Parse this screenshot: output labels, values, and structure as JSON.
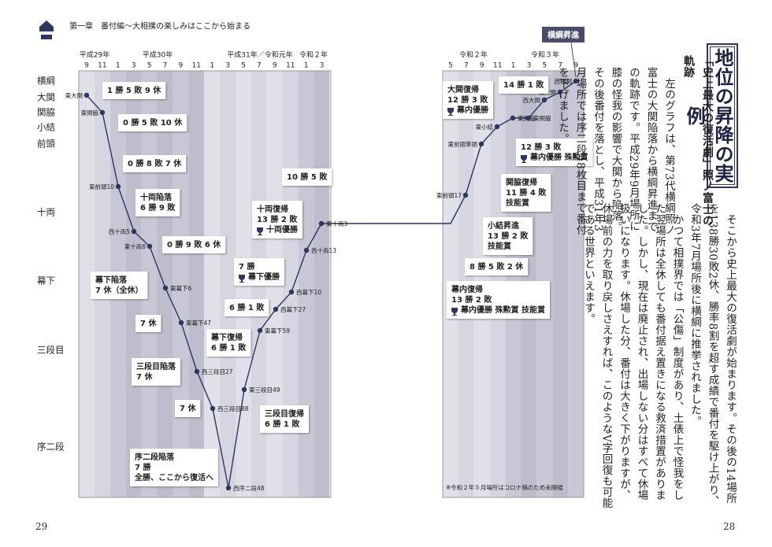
{
  "header": {
    "chapter": "第一章　番付編〜大相撲の楽しみはここから始まる"
  },
  "page_numbers": {
    "left": "29",
    "right": "28"
  },
  "chart": {
    "years_left": [
      "平成29年",
      "平成30年",
      "平成31年／令和元年",
      "令和２年"
    ],
    "months_left": [
      "9",
      "11",
      "1",
      "3",
      "5",
      "7",
      "9",
      "11",
      "1",
      "3",
      "5",
      "7",
      "9",
      "11",
      "1",
      "3"
    ],
    "years_right": [
      "令和２年",
      "令和３年"
    ],
    "months_right": [
      "5",
      "7",
      "9",
      "11",
      "1",
      "3",
      "5",
      "7",
      "9"
    ],
    "ranks": [
      "横綱",
      "大関",
      "関脇",
      "小結",
      "前頭",
      "十両",
      "幕下",
      "三段目",
      "序二段"
    ],
    "points": [
      "東大関",
      "東関脇",
      "東前頭10",
      "西十両5",
      "東十両8",
      "東幕下6",
      "東幕下47",
      "西三段目27",
      "西三段目88",
      "西序二段48",
      "東三段目49",
      "東幕下59",
      "西幕下27",
      "西幕下10",
      "西十両13",
      "東十両3",
      "東前頭17",
      "東前頭筆頭",
      "東小結",
      "東関脇",
      "東関脇",
      "西大関",
      "東大関",
      "西横綱"
    ],
    "boxes": [
      {
        "lines": [
          "1 勝 5 敗 9 休"
        ]
      },
      {
        "lines": [
          "0 勝 5 敗 10 休"
        ]
      },
      {
        "lines": [
          "0 勝 8 敗 7 休"
        ]
      },
      {
        "lines": [
          "十両陥落",
          "6 勝 9 敗"
        ]
      },
      {
        "lines": [
          "0 勝 9 敗 6 休"
        ]
      },
      {
        "lines": [
          "幕下陥落",
          "7 休（全休）"
        ]
      },
      {
        "lines": [
          "7 休"
        ]
      },
      {
        "lines": [
          "三段目陥落",
          "7 休"
        ]
      },
      {
        "lines": [
          "7 休"
        ]
      },
      {
        "lines": [
          "序二段陥落",
          "7 勝",
          "全勝、ここから復活へ"
        ]
      },
      {
        "lines": [
          "三段目復帰",
          "6 勝 1 敗"
        ]
      },
      {
        "lines": [
          "幕下復帰",
          "6 勝 1 敗"
        ]
      },
      {
        "lines": [
          "6 勝 1 敗"
        ]
      },
      {
        "lines": [
          "7 勝",
          "幕下優勝"
        ]
      },
      {
        "lines": [
          "十両復帰",
          "13 勝 2 敗",
          "十両優勝"
        ]
      },
      {
        "lines": [
          "10 勝 5 敗"
        ]
      },
      {
        "lines": [
          "14 勝 1 敗"
        ]
      },
      {
        "lines": [
          "大関復帰",
          "12 勝 3 敗",
          "幕内優勝"
        ]
      },
      {
        "lines": [
          "12 勝 3 敗",
          "幕内優勝 殊勲賞"
        ]
      },
      {
        "lines": [
          "関脇復帰",
          "11 勝 4 敗",
          "技能賞"
        ]
      },
      {
        "lines": [
          "小結昇進",
          "13 勝 2 敗",
          "技能賞"
        ]
      },
      {
        "lines": [
          "8 勝 5 敗 2 休"
        ]
      },
      {
        "lines": [
          "幕内復帰",
          "13 勝 2 敗",
          "幕内優勝 殊勲賞 技能賞"
        ]
      }
    ],
    "badge": "横綱昇進",
    "note": "※令和２年５月場所はコロナ禍のため未開催"
  },
  "article": {
    "title": "地位の昇降の実例",
    "subtitle": "「史上最大の復活劇」照ノ富士の軌跡",
    "paragraphs": [
      "左のグラフは、第73代横綱照ノ富士の大関陥落から横綱昇進までの軌跡です。平成29年9月場所に膝の怪我の影響で大関から陥落。その後番付を落とし、平成31年3月場所では序二段48枚目まで番付を下げました。",
      "そこから史上最大の復活劇が始まります。その後の14場所を138勝30敗2休、勝率8割を超す成績で番付を駆け上がり、令和3年7月場所後に横綱に推挙されました。",
      "かつて相撲界では「公傷」制度があり、土俵上で怪我をした翌場所は全休しても番付据え置きになる救済措置がありました。しかし、現在は廃止され、出場しない分はすべて休場扱いになります。休場した分、番付は大きく下がりますが、休場前の力を取り戻しさえすれば、このようなV字回復も可能である世界といえます。"
    ]
  }
}
